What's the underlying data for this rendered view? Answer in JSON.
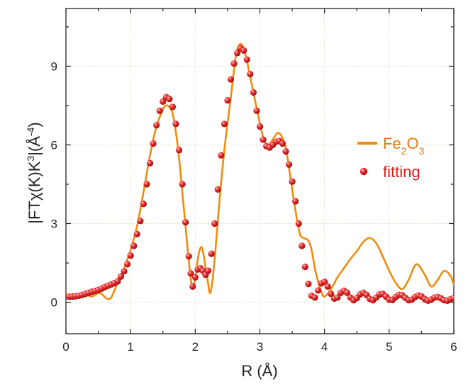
{
  "chart_data": {
    "type": "line",
    "title": "",
    "xlabel": "R (Å)",
    "ylabel": "|FTχ(K)K³|(Å⁻⁴)",
    "ylabel_parts": {
      "a": "|FT",
      "chi": "χ",
      "b": "(K)K",
      "sup1": "3",
      "c": "|(Å",
      "sup2": "-4",
      "d": ")"
    },
    "xlim": [
      0,
      6
    ],
    "ylim": [
      -1.2,
      11.2
    ],
    "xticks": [
      0,
      1,
      2,
      3,
      4,
      5,
      6
    ],
    "yticks": [
      0,
      3,
      6,
      9
    ],
    "xtick_labels": [
      "0",
      "1",
      "2",
      "3",
      "4",
      "5",
      "6"
    ],
    "ytick_labels": [
      "0",
      "3",
      "6",
      "9"
    ],
    "grid": true,
    "legend_position": "right",
    "series": [
      {
        "name": "Fe2O3",
        "style": "line",
        "color": "#f28a0e",
        "points": [
          [
            0.0,
            0.32
          ],
          [
            0.1,
            0.22
          ],
          [
            0.2,
            0.24
          ],
          [
            0.3,
            0.29
          ],
          [
            0.4,
            0.22
          ],
          [
            0.45,
            0.28
          ],
          [
            0.5,
            0.35
          ],
          [
            0.55,
            0.32
          ],
          [
            0.6,
            0.2
          ],
          [
            0.65,
            0.12
          ],
          [
            0.7,
            0.18
          ],
          [
            0.75,
            0.45
          ],
          [
            0.8,
            0.75
          ],
          [
            0.9,
            1.3
          ],
          [
            1.0,
            2.0
          ],
          [
            1.1,
            2.9
          ],
          [
            1.2,
            4.2
          ],
          [
            1.3,
            5.6
          ],
          [
            1.4,
            6.7
          ],
          [
            1.5,
            7.35
          ],
          [
            1.55,
            7.5
          ],
          [
            1.6,
            7.45
          ],
          [
            1.65,
            7.2
          ],
          [
            1.7,
            6.5
          ],
          [
            1.75,
            5.5
          ],
          [
            1.8,
            4.2
          ],
          [
            1.85,
            2.9
          ],
          [
            1.9,
            1.6
          ],
          [
            1.95,
            0.6
          ],
          [
            2.0,
            0.9
          ],
          [
            2.05,
            1.8
          ],
          [
            2.1,
            2.1
          ],
          [
            2.15,
            1.5
          ],
          [
            2.2,
            0.7
          ],
          [
            2.23,
            0.35
          ],
          [
            2.27,
            0.9
          ],
          [
            2.32,
            2.2
          ],
          [
            2.38,
            4.0
          ],
          [
            2.45,
            5.8
          ],
          [
            2.55,
            7.8
          ],
          [
            2.63,
            9.4
          ],
          [
            2.7,
            9.85
          ],
          [
            2.77,
            9.5
          ],
          [
            2.85,
            8.6
          ],
          [
            2.95,
            7.4
          ],
          [
            3.05,
            6.3
          ],
          [
            3.12,
            6.0
          ],
          [
            3.2,
            6.2
          ],
          [
            3.27,
            6.45
          ],
          [
            3.33,
            6.35
          ],
          [
            3.4,
            5.9
          ],
          [
            3.47,
            4.8
          ],
          [
            3.55,
            3.5
          ],
          [
            3.62,
            2.6
          ],
          [
            3.68,
            2.45
          ],
          [
            3.75,
            2.35
          ],
          [
            3.8,
            2.0
          ],
          [
            3.85,
            1.3
          ],
          [
            3.9,
            0.8
          ],
          [
            3.95,
            0.4
          ],
          [
            4.0,
            0.22
          ],
          [
            4.1,
            0.5
          ],
          [
            4.2,
            0.95
          ],
          [
            4.3,
            1.3
          ],
          [
            4.4,
            1.65
          ],
          [
            4.5,
            1.95
          ],
          [
            4.6,
            2.3
          ],
          [
            4.7,
            2.45
          ],
          [
            4.8,
            2.25
          ],
          [
            4.9,
            1.75
          ],
          [
            5.0,
            1.2
          ],
          [
            5.1,
            0.75
          ],
          [
            5.2,
            0.5
          ],
          [
            5.3,
            0.85
          ],
          [
            5.42,
            1.45
          ],
          [
            5.55,
            1.05
          ],
          [
            5.65,
            0.6
          ],
          [
            5.75,
            0.85
          ],
          [
            5.85,
            1.2
          ],
          [
            5.95,
            1.0
          ],
          [
            6.0,
            0.65
          ]
        ]
      },
      {
        "name": "fitting",
        "style": "markers",
        "color": "#e11a1a",
        "points": [
          [
            0.05,
            0.21
          ],
          [
            0.1,
            0.22
          ],
          [
            0.15,
            0.23
          ],
          [
            0.2,
            0.25
          ],
          [
            0.25,
            0.28
          ],
          [
            0.3,
            0.32
          ],
          [
            0.35,
            0.36
          ],
          [
            0.4,
            0.4
          ],
          [
            0.45,
            0.43
          ],
          [
            0.5,
            0.47
          ],
          [
            0.55,
            0.52
          ],
          [
            0.6,
            0.58
          ],
          [
            0.65,
            0.63
          ],
          [
            0.7,
            0.68
          ],
          [
            0.75,
            0.73
          ],
          [
            0.8,
            0.8
          ],
          [
            0.85,
            0.98
          ],
          [
            0.9,
            1.18
          ],
          [
            0.95,
            1.45
          ],
          [
            1.0,
            1.78
          ],
          [
            1.05,
            2.15
          ],
          [
            1.1,
            2.6
          ],
          [
            1.15,
            3.1
          ],
          [
            1.2,
            3.75
          ],
          [
            1.25,
            4.5
          ],
          [
            1.3,
            5.3
          ],
          [
            1.35,
            6.05
          ],
          [
            1.4,
            6.75
          ],
          [
            1.45,
            7.3
          ],
          [
            1.5,
            7.65
          ],
          [
            1.55,
            7.82
          ],
          [
            1.6,
            7.75
          ],
          [
            1.65,
            7.45
          ],
          [
            1.7,
            6.8
          ],
          [
            1.75,
            5.8
          ],
          [
            1.8,
            4.5
          ],
          [
            1.85,
            3.05
          ],
          [
            1.9,
            1.75
          ],
          [
            1.93,
            1.1
          ],
          [
            1.96,
            0.6
          ],
          [
            2.0,
            0.95
          ],
          [
            2.04,
            1.25
          ],
          [
            2.08,
            1.3
          ],
          [
            2.12,
            1.2
          ],
          [
            2.16,
            1.05
          ],
          [
            2.2,
            1.2
          ],
          [
            2.25,
            1.85
          ],
          [
            2.3,
            3.0
          ],
          [
            2.35,
            4.3
          ],
          [
            2.4,
            5.6
          ],
          [
            2.45,
            6.8
          ],
          [
            2.5,
            7.7
          ],
          [
            2.55,
            8.5
          ],
          [
            2.6,
            9.1
          ],
          [
            2.65,
            9.5
          ],
          [
            2.7,
            9.68
          ],
          [
            2.75,
            9.6
          ],
          [
            2.8,
            9.25
          ],
          [
            2.85,
            8.7
          ],
          [
            2.9,
            8.0
          ],
          [
            2.95,
            7.3
          ],
          [
            3.0,
            6.7
          ],
          [
            3.05,
            6.2
          ],
          [
            3.1,
            5.95
          ],
          [
            3.15,
            5.9
          ],
          [
            3.2,
            6.0
          ],
          [
            3.25,
            6.12
          ],
          [
            3.3,
            6.15
          ],
          [
            3.35,
            6.05
          ],
          [
            3.4,
            5.75
          ],
          [
            3.45,
            5.25
          ],
          [
            3.5,
            4.6
          ],
          [
            3.55,
            3.85
          ],
          [
            3.6,
            3.0
          ],
          [
            3.65,
            2.15
          ],
          [
            3.7,
            1.35
          ],
          [
            3.75,
            0.7
          ],
          [
            3.8,
            0.25
          ],
          [
            3.85,
            0.18
          ],
          [
            3.9,
            0.45
          ],
          [
            3.95,
            0.72
          ],
          [
            4.0,
            0.78
          ],
          [
            4.05,
            0.6
          ],
          [
            4.1,
            0.32
          ],
          [
            4.15,
            0.14
          ],
          [
            4.2,
            0.18
          ],
          [
            4.25,
            0.36
          ],
          [
            4.3,
            0.44
          ],
          [
            4.35,
            0.36
          ],
          [
            4.4,
            0.18
          ],
          [
            4.45,
            0.08
          ],
          [
            4.5,
            0.16
          ],
          [
            4.55,
            0.3
          ],
          [
            4.6,
            0.36
          ],
          [
            4.65,
            0.28
          ],
          [
            4.7,
            0.13
          ],
          [
            4.75,
            0.08
          ],
          [
            4.8,
            0.18
          ],
          [
            4.85,
            0.3
          ],
          [
            4.9,
            0.32
          ],
          [
            4.95,
            0.22
          ],
          [
            5.0,
            0.1
          ],
          [
            5.05,
            0.09
          ],
          [
            5.1,
            0.2
          ],
          [
            5.15,
            0.28
          ],
          [
            5.2,
            0.27
          ],
          [
            5.25,
            0.17
          ],
          [
            5.3,
            0.08
          ],
          [
            5.35,
            0.1
          ],
          [
            5.4,
            0.2
          ],
          [
            5.45,
            0.26
          ],
          [
            5.5,
            0.22
          ],
          [
            5.55,
            0.12
          ],
          [
            5.6,
            0.06
          ],
          [
            5.65,
            0.1
          ],
          [
            5.7,
            0.18
          ],
          [
            5.75,
            0.2
          ],
          [
            5.8,
            0.15
          ],
          [
            5.85,
            0.08
          ],
          [
            5.9,
            0.06
          ],
          [
            5.95,
            0.12
          ],
          [
            6.0,
            0.16
          ]
        ]
      }
    ],
    "legend": [
      {
        "label_main": "Fe",
        "sub1": "2",
        "mid": "O",
        "sub2": "3",
        "color": "#f28a0e",
        "style": "line"
      },
      {
        "label_main": "fitting",
        "color": "#e11a1a",
        "style": "markers"
      }
    ]
  }
}
